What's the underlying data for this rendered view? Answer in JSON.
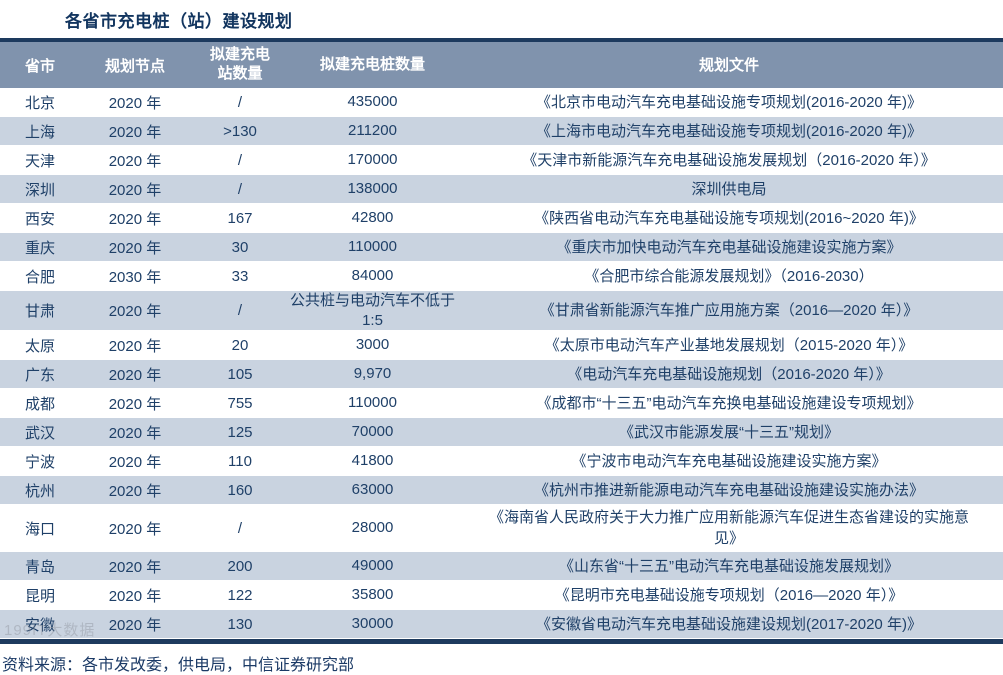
{
  "title": "各省市充电桩（站）建设规划",
  "source_note": "资料来源：各市发改委，供电局，中信证券研究部",
  "watermark": "199IT大数据",
  "colors": {
    "header_bg": "#8093AD",
    "row_alt_bg": "#C9D3E0",
    "accent_bar": "#1D3A5E",
    "text": "#1F4068"
  },
  "table": {
    "columns": [
      {
        "key": "city",
        "label": "省市"
      },
      {
        "key": "node",
        "label": "规划节点"
      },
      {
        "key": "stations",
        "label": "拟建充电站数量"
      },
      {
        "key": "piles",
        "label": "拟建充电桩数量"
      },
      {
        "key": "doc",
        "label": "规划文件"
      }
    ],
    "rows": [
      {
        "city": "北京",
        "node": "2020 年",
        "stations": "/",
        "piles": "435000",
        "doc": "《北京市电动汽车充电基础设施专项规划(2016-2020 年)》"
      },
      {
        "city": "上海",
        "node": "2020 年",
        "stations": ">130",
        "piles": "211200",
        "doc": "《上海市电动汽车充电基础设施专项规划(2016-2020 年)》"
      },
      {
        "city": "天津",
        "node": "2020 年",
        "stations": "/",
        "piles": "170000",
        "doc": "《天津市新能源汽车充电基础设施发展规划（2016-2020 年）》"
      },
      {
        "city": "深圳",
        "node": "2020 年",
        "stations": "/",
        "piles": "138000",
        "doc": "深圳供电局"
      },
      {
        "city": "西安",
        "node": "2020 年",
        "stations": "167",
        "piles": "42800",
        "doc": "《陕西省电动汽车充电基础设施专项规划(2016~2020 年)》"
      },
      {
        "city": "重庆",
        "node": "2020 年",
        "stations": "30",
        "piles": "110000",
        "doc": "《重庆市加快电动汽车充电基础设施建设实施方案》"
      },
      {
        "city": "合肥",
        "node": "2030 年",
        "stations": "33",
        "piles": "84000",
        "doc": "《合肥市综合能源发展规划》（2016-2030）"
      },
      {
        "city": "甘肃",
        "node": "2020 年",
        "stations": "/",
        "piles": "公共桩与电动汽车不低于 1:5",
        "doc": "《甘肃省新能源汽车推广应用施方案（2016—2020 年）》"
      },
      {
        "city": "太原",
        "node": "2020 年",
        "stations": "20",
        "piles": "3000",
        "doc": "《太原市电动汽车产业基地发展规划（2015-2020 年）》"
      },
      {
        "city": "广东",
        "node": "2020 年",
        "stations": "105",
        "piles": "9,970",
        "doc": "《电动汽车充电基础设施规划（2016-2020 年）》"
      },
      {
        "city": "成都",
        "node": "2020 年",
        "stations": "755",
        "piles": "110000",
        "doc": "《成都市“十三五”电动汽车充换电基础设施建设专项规划》"
      },
      {
        "city": "武汉",
        "node": "2020 年",
        "stations": "125",
        "piles": "70000",
        "doc": "《武汉市能源发展“十三五”规划》"
      },
      {
        "city": "宁波",
        "node": "2020 年",
        "stations": "110",
        "piles": "41800",
        "doc": "《宁波市电动汽车充电基础设施建设实施方案》"
      },
      {
        "city": "杭州",
        "node": "2020 年",
        "stations": "160",
        "piles": "63000",
        "doc": "《杭州市推进新能源电动汽车充电基础设施建设实施办法》"
      },
      {
        "city": "海口",
        "node": "2020 年",
        "stations": "/",
        "piles": "28000",
        "doc": "《海南省人民政府关于大力推广应用新能源汽车促进生态省建设的实施意见》"
      },
      {
        "city": "青岛",
        "node": "2020 年",
        "stations": "200",
        "piles": "49000",
        "doc": "《山东省“十三五”电动汽车充电基础设施发展规划》"
      },
      {
        "city": "昆明",
        "node": "2020 年",
        "stations": "122",
        "piles": "35800",
        "doc": "《昆明市充电基础设施专项规划（2016—2020 年）》"
      },
      {
        "city": "安徽",
        "node": "2020 年",
        "stations": "130",
        "piles": "30000",
        "doc": "《安徽省电动汽车充电基础设施建设规划(2017-2020 年)》"
      }
    ]
  }
}
